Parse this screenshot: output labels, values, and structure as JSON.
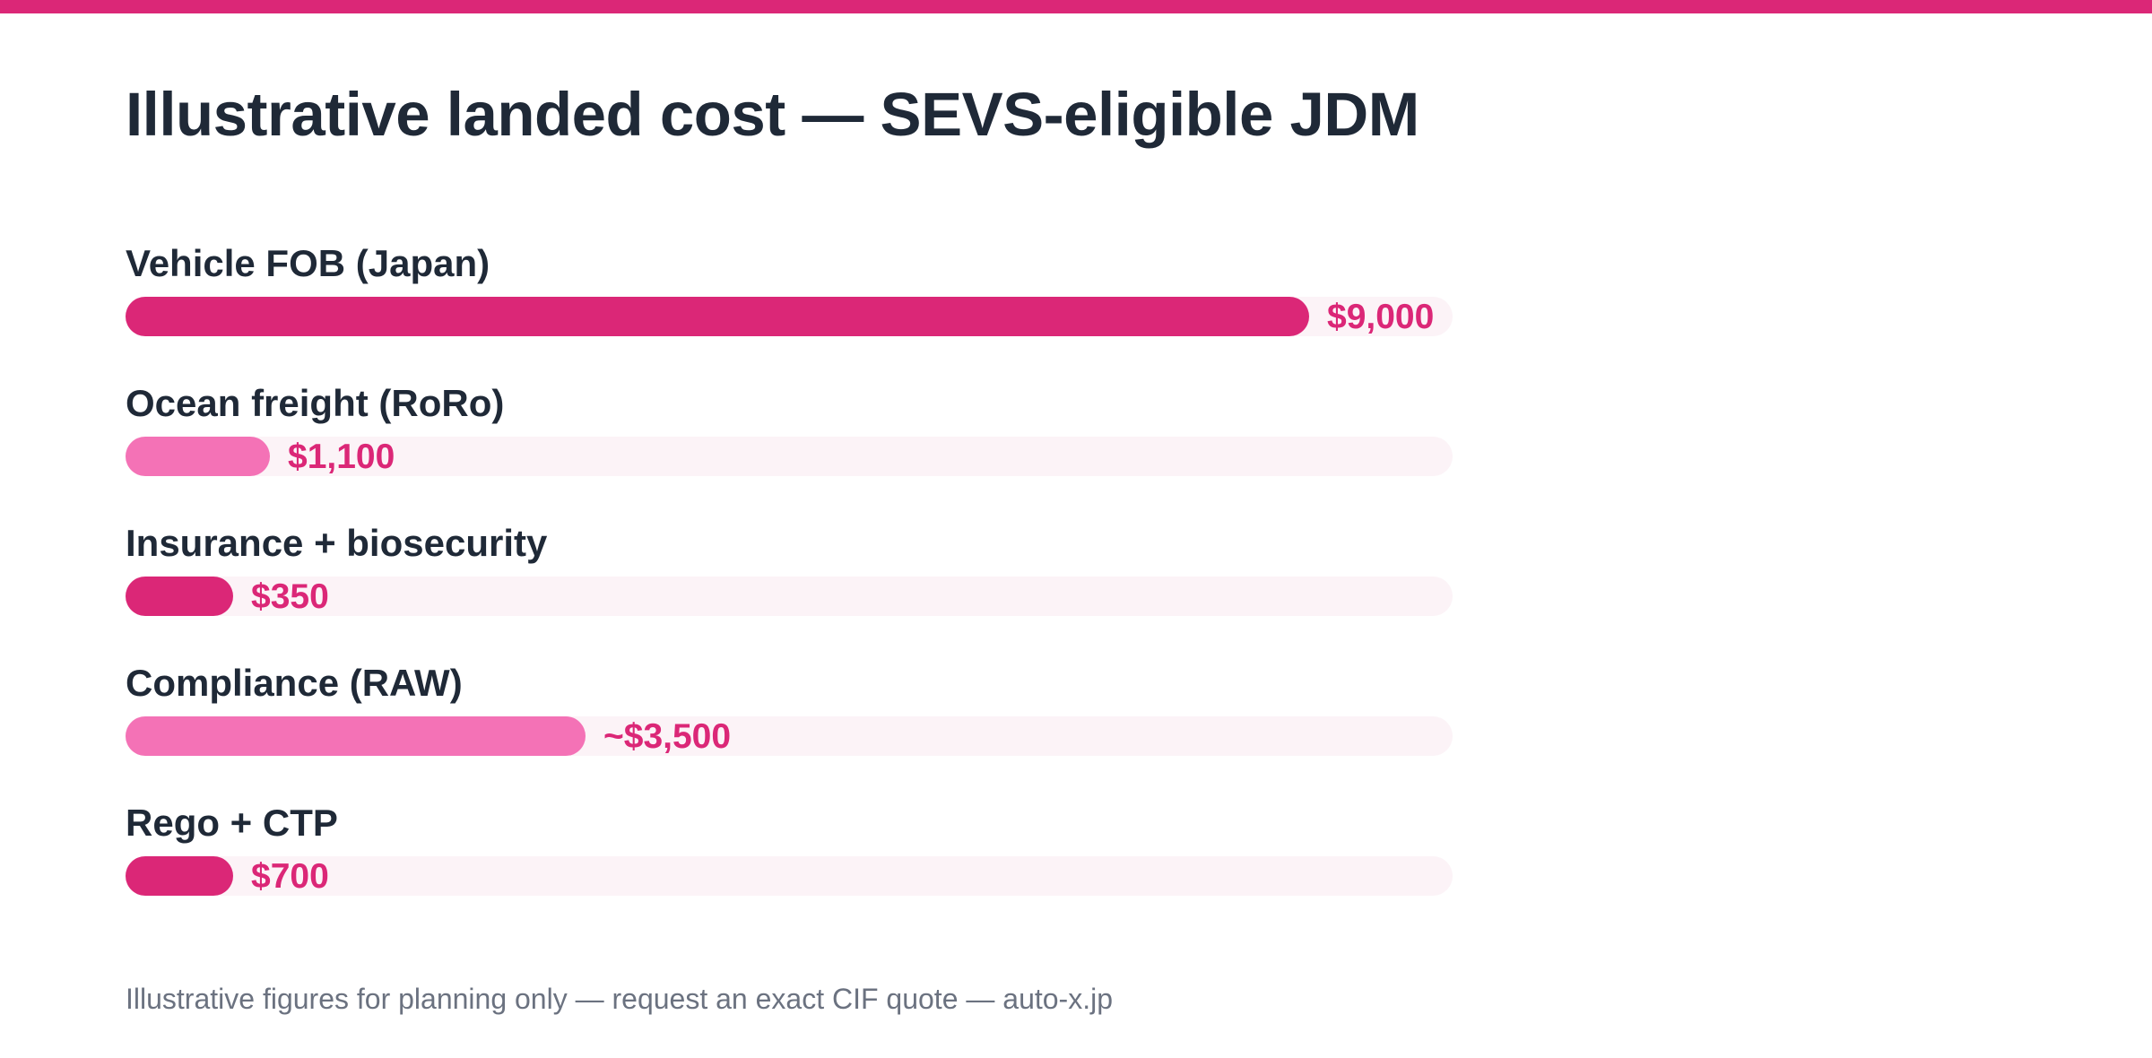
{
  "colors": {
    "accent": "#db2777",
    "accent_light": "#f472b6",
    "track": "#fcf3f7",
    "text": "#1f2937",
    "muted": "#6b7280"
  },
  "title": "Illustrative landed cost — SEVS-eligible JDM",
  "footnote": "Illustrative figures for planning only — request an exact CIF quote — auto-x.jp",
  "chart_data": {
    "type": "bar",
    "orientation": "horizontal",
    "title": "Illustrative landed cost — SEVS-eligible JDM",
    "xlim": [
      0,
      9000
    ],
    "categories": [
      "Vehicle FOB (Japan)",
      "Ocean freight (RoRo)",
      "Insurance + biosecurity",
      "Compliance (RAW)",
      "Rego + CTP"
    ],
    "values": [
      9000,
      1100,
      350,
      3500,
      700
    ],
    "value_labels": [
      "$9,000",
      "$1,100",
      "$350",
      "~$3,500",
      "$700"
    ],
    "bar_colors": [
      "#db2777",
      "#f472b6",
      "#db2777",
      "#f472b6",
      "#db2777"
    ]
  }
}
